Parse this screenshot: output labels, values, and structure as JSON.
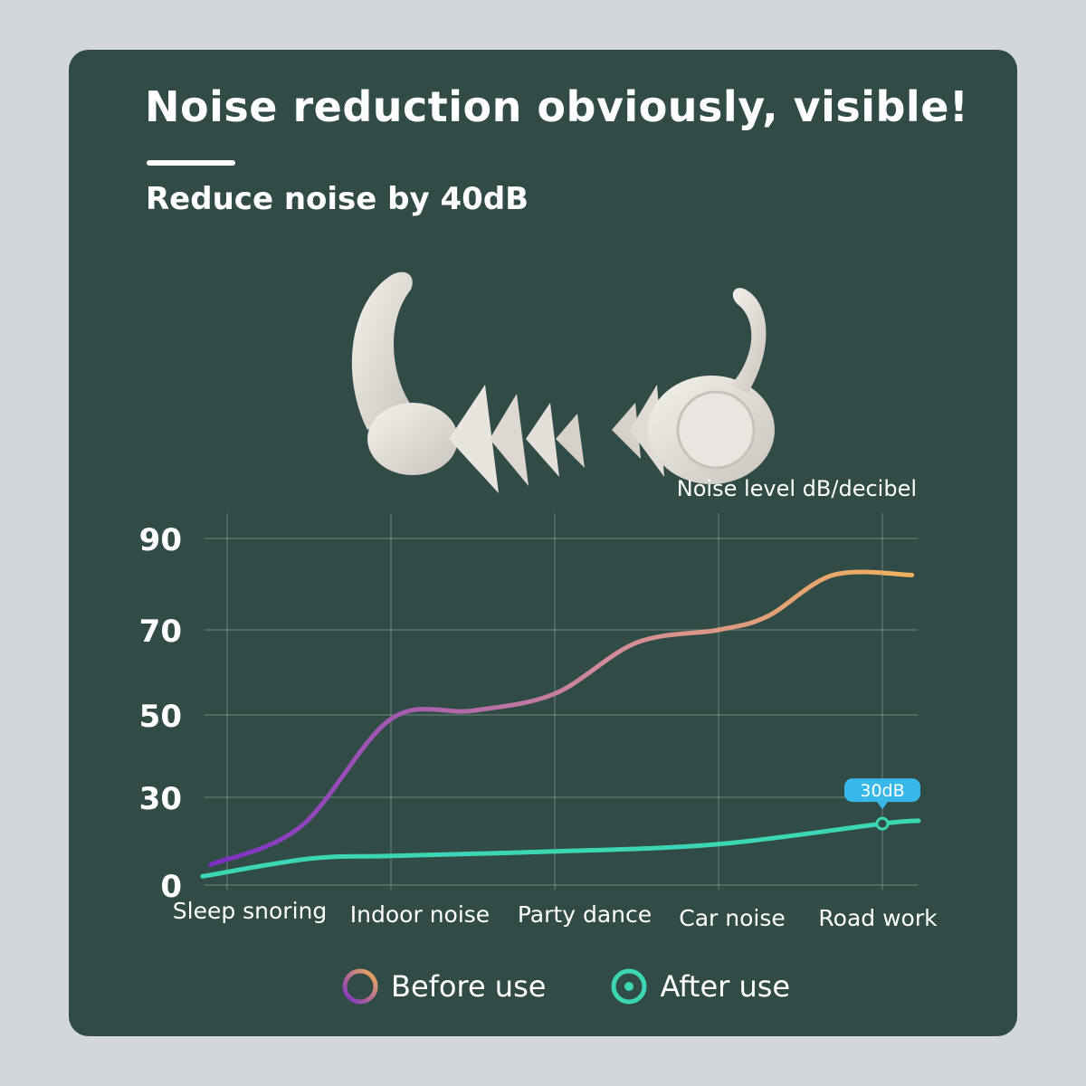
{
  "header": {
    "title": "Noise reduction obviously, visible!",
    "subtitle": "Reduce noise by 40dB"
  },
  "colors": {
    "background": "#d3d7d9",
    "card": "#314b46",
    "before_start": "#7a2cc6",
    "before_mid": "#d08a9a",
    "before_end": "#f2b35a",
    "after": "#3dd6b3",
    "badge": "#38b8e8"
  },
  "chart_data": {
    "type": "line",
    "ylabel": "Noise level dB/decibel",
    "categories": [
      "Sleep snoring",
      "Indoor noise",
      "Party dance",
      "Car noise",
      "Road work"
    ],
    "ylim": [
      0,
      90
    ],
    "yticks": [
      0,
      30,
      50,
      70,
      90
    ],
    "grid": true,
    "series": [
      {
        "name": "Before use",
        "x": [
          -0.1,
          0.45,
          1.0,
          1.5,
          2.0,
          2.5,
          3.0,
          3.3,
          3.7,
          4.18
        ],
        "values": [
          7,
          20,
          49,
          51,
          55,
          67,
          70,
          73,
          82,
          82
        ]
      },
      {
        "name": "After use",
        "x": [
          -0.15,
          0.5,
          1.0,
          2.0,
          3.0,
          4.0,
          4.22
        ],
        "values": [
          3,
          9,
          10,
          11.5,
          14,
          21,
          22
        ]
      }
    ],
    "annotation": {
      "series": "After use",
      "x": 4.0,
      "y": 21,
      "label": "30dB"
    },
    "legend": {
      "position": "bottom",
      "items": [
        "Before use",
        "After use"
      ]
    }
  }
}
